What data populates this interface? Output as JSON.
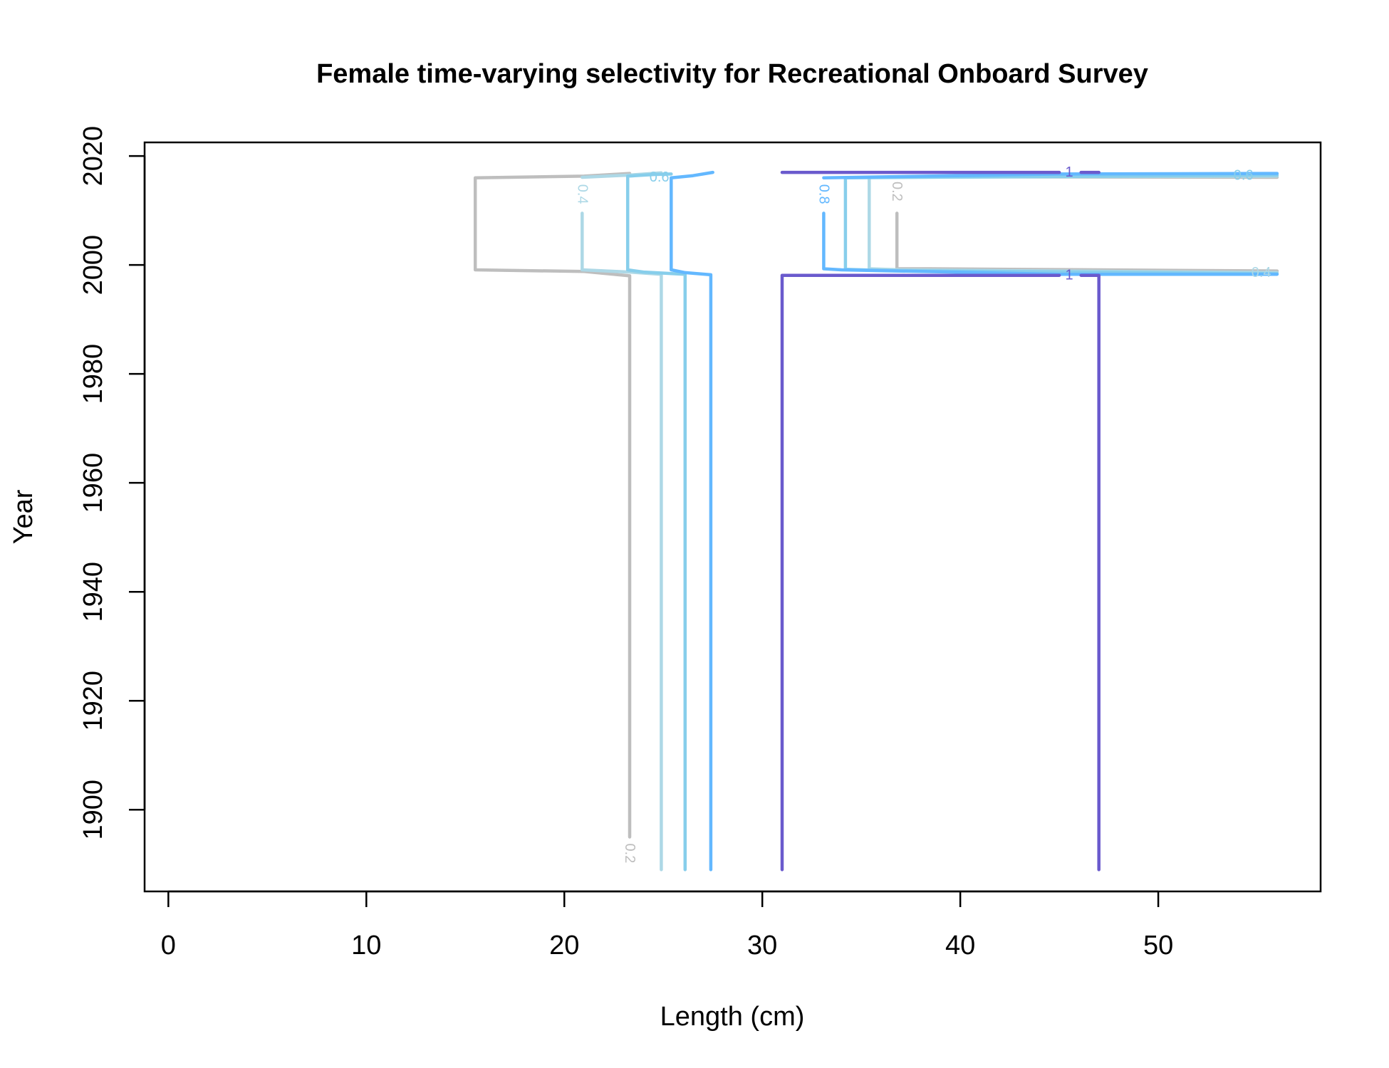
{
  "chart_data": {
    "type": "line",
    "subtype": "contour",
    "title": "Female time-varying selectivity for Recreational Onboard Survey",
    "xlabel": "Length (cm)",
    "ylabel": "Year",
    "xlim": [
      -1.2,
      58.2
    ],
    "ylim": [
      1885,
      2022.5
    ],
    "xticks": [
      0,
      10,
      20,
      30,
      40,
      50
    ],
    "yticks": [
      1900,
      1920,
      1940,
      1960,
      1980,
      2000,
      2020
    ],
    "grid": false,
    "legend": "none",
    "series": [
      {
        "name": "0.2",
        "color": "#bebebe",
        "paths": [
          [
            [
              23.3,
              1895
            ],
            [
              23.3,
              1998
            ],
            [
              21,
              1998.8
            ],
            [
              15.5,
              1999.1
            ],
            [
              15.5,
              2016
            ],
            [
              21,
              2016.3
            ],
            [
              23.3,
              2016.8
            ]
          ],
          [
            [
              36.8,
              2009.5
            ],
            [
              36.8,
              1999.3
            ],
            [
              38.5,
              1999.3
            ],
            [
              56,
              1998.9
            ]
          ],
          [
            [
              36.8,
              2016.2
            ],
            [
              56,
              2016.1
            ]
          ]
        ],
        "labels": [
          {
            "text": "0.2",
            "x": 23.3,
            "y": 1892,
            "angle": 90
          },
          {
            "text": "0.2",
            "x": 36.8,
            "y": 2013.5,
            "angle": 90
          }
        ]
      },
      {
        "name": "0.4",
        "color": "#add8e6",
        "paths": [
          [
            [
              24.9,
              1889
            ],
            [
              24.9,
              1998.3
            ],
            [
              23.3,
              1998.7
            ],
            [
              20.9,
              1999.1
            ],
            [
              20.9,
              2009.5
            ]
          ],
          [
            [
              20.9,
              2016.1
            ],
            [
              23.3,
              2016.5
            ],
            [
              24.9,
              2016.9
            ]
          ],
          [
            [
              35.4,
              2016.1
            ],
            [
              35.4,
              1999.3
            ],
            [
              37,
              1999.1
            ],
            [
              56,
              1998.6
            ]
          ],
          [
            [
              35.4,
              2016.1
            ],
            [
              56,
              2016.3
            ]
          ]
        ],
        "labels": [
          {
            "text": "0.4",
            "x": 20.9,
            "y": 2013,
            "angle": 90
          },
          {
            "text": "0.4",
            "x": 55.2,
            "y": 1998.6,
            "angle": 0
          }
        ]
      },
      {
        "name": "0.6",
        "color": "#87ceeb",
        "paths": [
          [
            [
              26.1,
              1889
            ],
            [
              26.1,
              1998.3
            ],
            [
              24,
              1998.7
            ],
            [
              23.2,
              1999.1
            ],
            [
              23.2,
              2016.3
            ],
            [
              24.5,
              2016.6
            ],
            [
              25.4,
              2016.7
            ]
          ],
          [
            [
              34.2,
              2016
            ],
            [
              34.2,
              1999.2
            ],
            [
              36,
              1999
            ],
            [
              56,
              1998.4
            ]
          ],
          [
            [
              34.2,
              2016
            ],
            [
              56,
              2016.5
            ]
          ]
        ],
        "labels": [
          {
            "text": "0.6",
            "x": 24.8,
            "y": 2016.1,
            "angle": 0
          },
          {
            "text": "0.6",
            "x": 54.3,
            "y": 2016.4,
            "angle": 0
          }
        ]
      },
      {
        "name": "0.8",
        "color": "#63b8ff",
        "paths": [
          [
            [
              27.4,
              1889
            ],
            [
              27.4,
              1998.2
            ],
            [
              26.1,
              1998.6
            ],
            [
              25.4,
              1999.1
            ],
            [
              25.4,
              2016
            ],
            [
              26.5,
              2016.4
            ],
            [
              27.5,
              2017
            ]
          ],
          [
            [
              33.1,
              2009.5
            ],
            [
              33.1,
              1999.3
            ],
            [
              34,
              1999.1
            ],
            [
              45,
              1998.3
            ],
            [
              56,
              1998.3
            ]
          ],
          [
            [
              33.1,
              2016
            ],
            [
              45,
              2016.7
            ],
            [
              56,
              2016.8
            ]
          ]
        ],
        "labels": [
          {
            "text": "0.8",
            "x": 33.1,
            "y": 2013,
            "angle": 90
          }
        ]
      },
      {
        "name": "1",
        "color": "#6a5acd",
        "paths": [
          [
            [
              31,
              1889
            ],
            [
              31,
              1998.1
            ],
            [
              45,
              1998.1
            ]
          ],
          [
            [
              46.1,
              1998.1
            ],
            [
              47,
              1998.1
            ],
            [
              47,
              1889
            ]
          ],
          [
            [
              31,
              2017
            ],
            [
              45,
              2017
            ]
          ],
          [
            [
              46.1,
              2017
            ],
            [
              47,
              2017
            ]
          ]
        ],
        "labels": [
          {
            "text": "1",
            "x": 45.5,
            "y": 1998.1,
            "angle": 0
          },
          {
            "text": "1",
            "x": 45.5,
            "y": 2017,
            "angle": 0
          }
        ]
      }
    ]
  }
}
